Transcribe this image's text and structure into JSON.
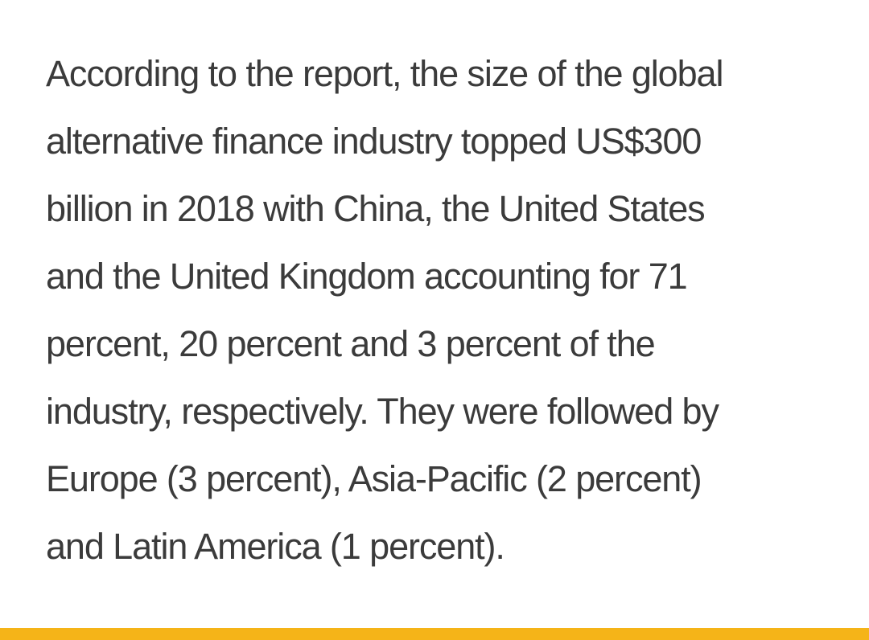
{
  "paragraph": {
    "lines": [
      "According to the report, the size of the global",
      "alternative finance industry topped US$300",
      "billion in 2018 with China, the United States",
      "and the United Kingdom accounting for 71",
      "percent, 20 percent and 3 percent of the",
      "industry, respectively. They were followed by",
      "Europe (3 percent), Asia-Pacific (2 percent)",
      "and Latin America (1 percent)."
    ]
  },
  "colors": {
    "text": "#3b3b3b",
    "background": "#ffffff",
    "accent_bar": "#f5b418"
  }
}
